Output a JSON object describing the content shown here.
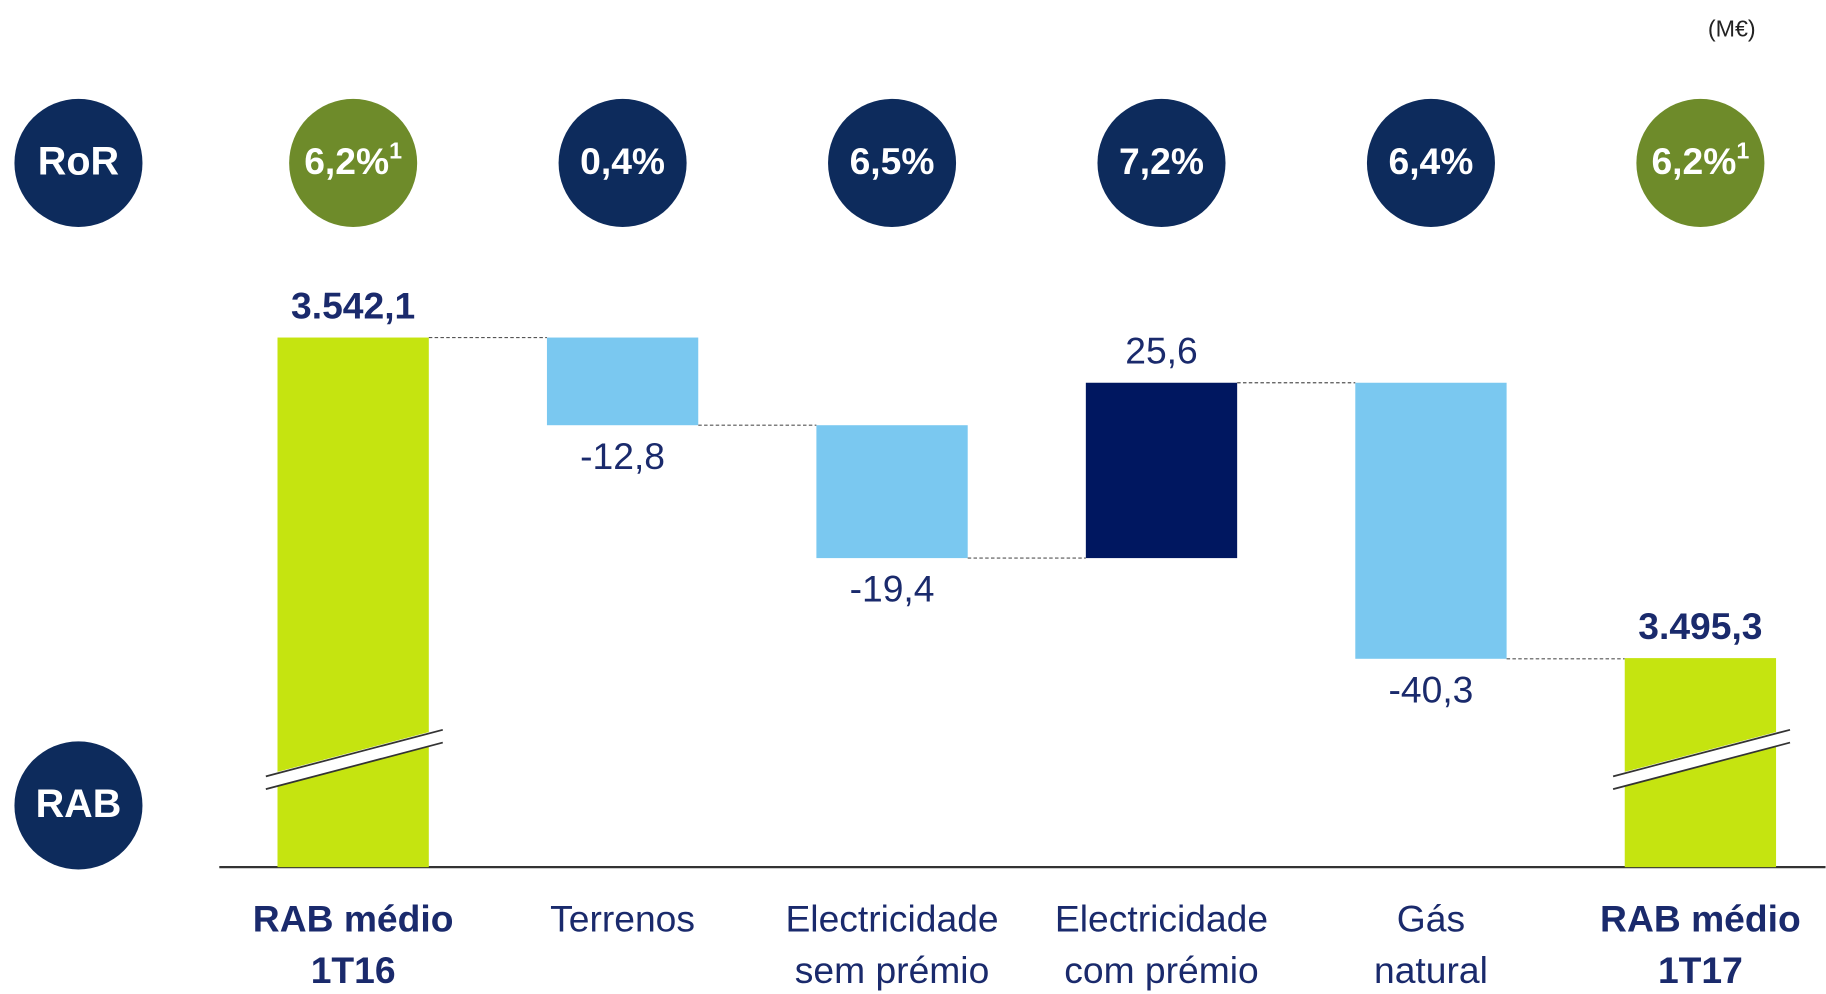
{
  "chart_data": {
    "type": "waterfall",
    "unit": "(M€)",
    "ror_label": "RoR",
    "rab_label": "RAB",
    "categories": [
      [
        "RAB médio",
        "1T16"
      ],
      [
        "Terrenos"
      ],
      [
        "Electricidade",
        "sem prémio"
      ],
      [
        "Electricidade",
        "com prémio"
      ],
      [
        "Gás",
        "natural"
      ],
      [
        "RAB médio",
        "1T17"
      ]
    ],
    "measures": [
      "total",
      "relative",
      "relative",
      "relative",
      "relative",
      "total"
    ],
    "values": [
      3542.1,
      -12.8,
      -19.4,
      25.6,
      -40.3,
      3495.3
    ],
    "value_labels": [
      "3.542,1",
      "-12,8",
      "-19,4",
      "25,6",
      "-40,3",
      "3.495,3"
    ],
    "colors": {
      "total": "#c5e410",
      "increase": "#001760",
      "decrease": "#7ac8f0"
    },
    "ror": {
      "values": [
        6.2,
        0.4,
        6.5,
        7.2,
        6.4,
        6.2
      ],
      "value_labels": [
        "6,2%",
        "0,4%",
        "6,5%",
        "7,2%",
        "6,4%",
        "6,2%"
      ],
      "footnotes": [
        "1",
        null,
        null,
        null,
        null,
        "1"
      ],
      "colors": {
        "total": "#6e8b2a",
        "relative": "#0d2b5c"
      }
    }
  }
}
